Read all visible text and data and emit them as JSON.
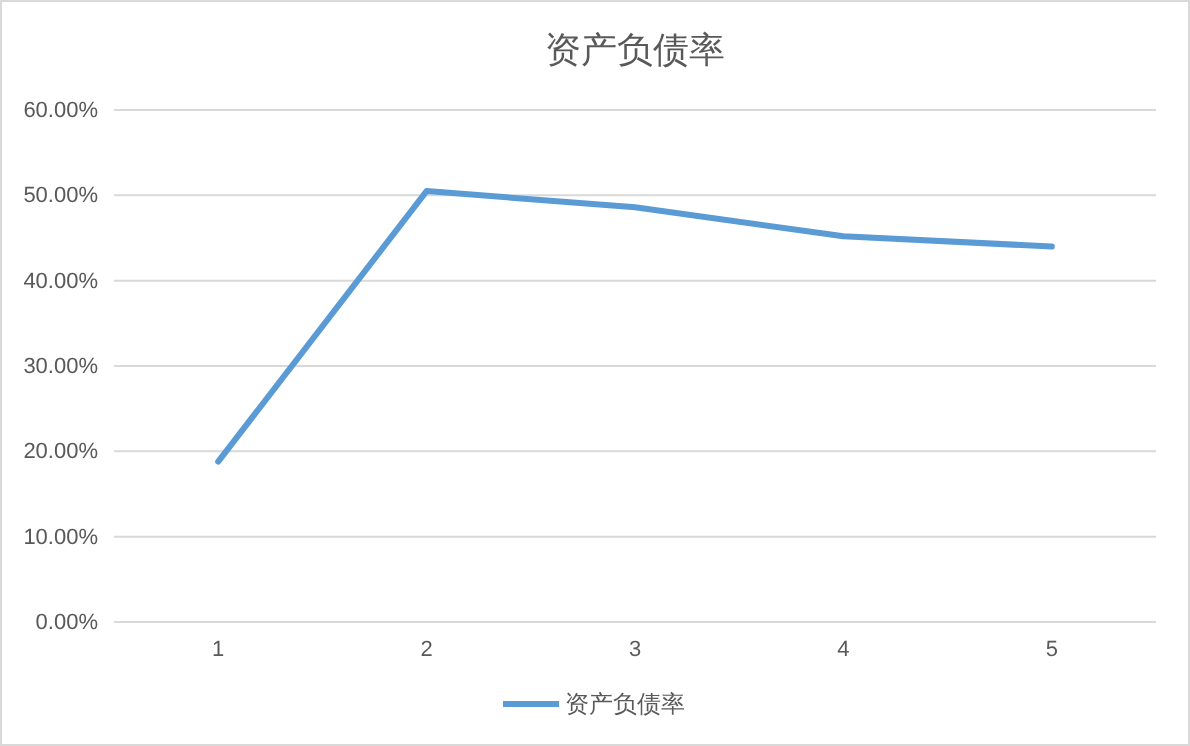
{
  "chart_data": {
    "type": "line",
    "title": "资产负债率",
    "categories": [
      "1",
      "2",
      "3",
      "4",
      "5"
    ],
    "series": [
      {
        "name": "资产负债率",
        "color": "#5b9bd5",
        "values": [
          18.8,
          50.5,
          48.6,
          45.2,
          44.0
        ]
      }
    ],
    "ylim": [
      0,
      60
    ],
    "yticks": [
      {
        "value": 0,
        "label": "0.00%"
      },
      {
        "value": 10,
        "label": "10.00%"
      },
      {
        "value": 20,
        "label": "20.00%"
      },
      {
        "value": 30,
        "label": "30.00%"
      },
      {
        "value": 40,
        "label": "40.00%"
      },
      {
        "value": 50,
        "label": "50.00%"
      },
      {
        "value": 60,
        "label": "60.00%"
      }
    ],
    "grid": "y",
    "legend": "bottom",
    "marker": "none",
    "line_style": "solid"
  }
}
